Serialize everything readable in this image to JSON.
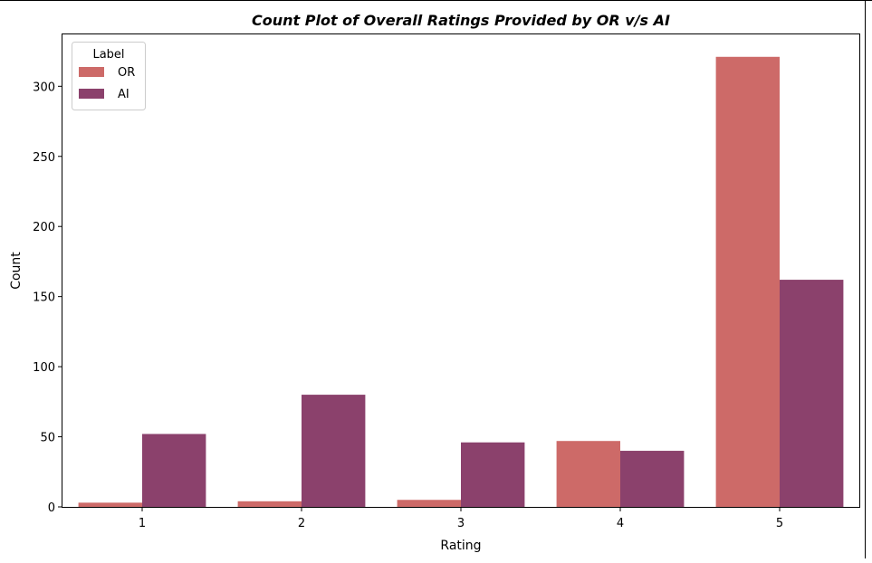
{
  "chart_data": {
    "type": "bar",
    "title": "Count Plot of Overall Ratings Provided by OR v/s AI",
    "xlabel": "Rating",
    "ylabel": "Count",
    "categories": [
      "1",
      "2",
      "3",
      "4",
      "5"
    ],
    "series": [
      {
        "name": "OR",
        "color": "#cd6a68",
        "values": [
          3,
          4,
          5,
          47,
          321
        ]
      },
      {
        "name": "AI",
        "color": "#8b416c",
        "values": [
          52,
          80,
          46,
          40,
          162
        ]
      }
    ],
    "ylim": [
      0,
      337
    ],
    "yticks": [
      0,
      50,
      100,
      150,
      200,
      250,
      300
    ],
    "grid": false,
    "legend": {
      "title": "Label",
      "placement": "top-left"
    }
  }
}
